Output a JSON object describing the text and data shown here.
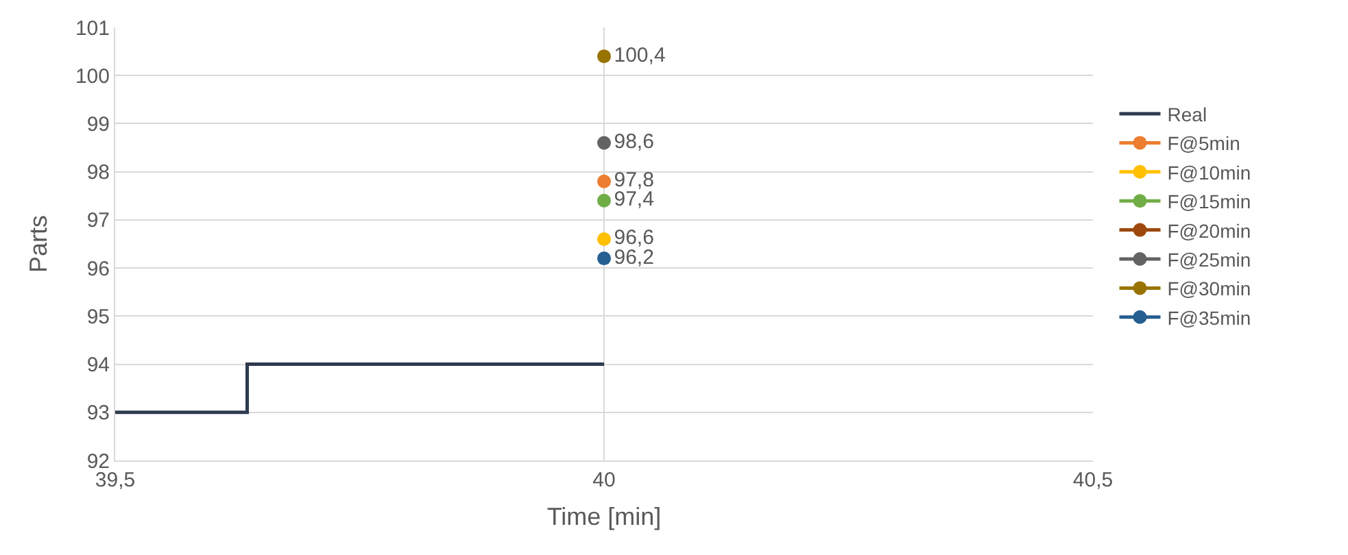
{
  "chart_data": {
    "type": "line",
    "xlabel": "Time [min]",
    "ylabel": "Parts",
    "xlim": [
      39.5,
      40.5
    ],
    "xticks": [
      {
        "value": 39.5,
        "label": "39,5"
      },
      40,
      {
        "value": 40.5,
        "label": "40,5"
      }
    ],
    "ylim": [
      92,
      101
    ],
    "yticks": [
      92,
      93,
      94,
      95,
      96,
      97,
      98,
      99,
      100,
      101
    ],
    "grid": true,
    "legend": "right",
    "series": [
      {
        "name": "Real",
        "type": "step",
        "color": "#2e3a4f",
        "marker": "none",
        "x": [
          39.5,
          39.635,
          40
        ],
        "values": [
          93,
          94,
          94
        ]
      },
      {
        "name": "F@5min",
        "color": "#ed7d31",
        "marker": "circle",
        "x": [
          40
        ],
        "values": [
          97.8
        ],
        "value_labels": [
          "97,8"
        ]
      },
      {
        "name": "F@10min",
        "color": "#ffc000",
        "marker": "circle",
        "x": [
          40
        ],
        "values": [
          96.6
        ],
        "value_labels": [
          "96,6"
        ]
      },
      {
        "name": "F@15min",
        "color": "#70ad47",
        "marker": "circle",
        "x": [
          40
        ],
        "values": [
          97.4
        ],
        "value_labels": [
          "97,4"
        ]
      },
      {
        "name": "F@20min",
        "color": "#9e480e",
        "marker": "circle"
      },
      {
        "name": "F@25min",
        "color": "#636363",
        "marker": "circle",
        "x": [
          40
        ],
        "values": [
          98.6
        ],
        "value_labels": [
          "98,6"
        ]
      },
      {
        "name": "F@30min",
        "color": "#997300",
        "marker": "circle",
        "x": [
          40
        ],
        "values": [
          100.4
        ],
        "value_labels": [
          "100,4"
        ]
      },
      {
        "name": "F@35min",
        "color": "#255e91",
        "marker": "circle",
        "x": [
          40
        ],
        "values": [
          96.2
        ],
        "value_labels": [
          "96,2"
        ]
      }
    ]
  }
}
